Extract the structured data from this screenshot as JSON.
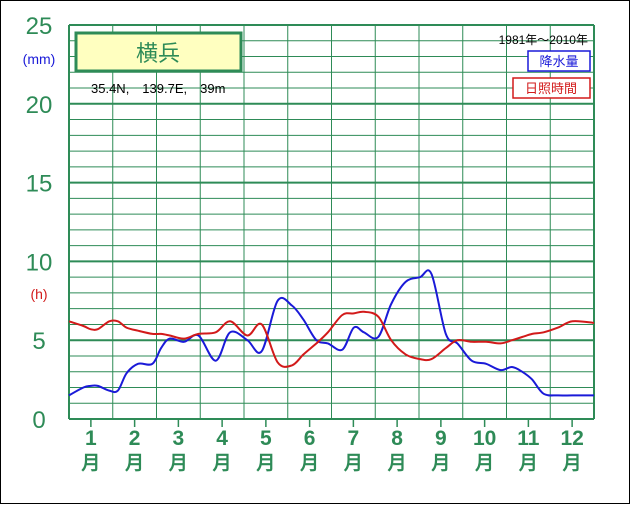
{
  "chart_data": {
    "type": "line",
    "title": "横兵",
    "period": "1981年〜2010年",
    "location": "35.4N,　139.7E,　39m",
    "y_unit_left": "(mm)",
    "y_unit_right": "(h)",
    "ylim": [
      0,
      25
    ],
    "yticks": [
      "0",
      "5",
      "10",
      "15",
      "20",
      "25"
    ],
    "month_numbers": [
      "1",
      "2",
      "3",
      "4",
      "5",
      "6",
      "7",
      "8",
      "9",
      "10",
      "11",
      "12"
    ],
    "month_char": "月",
    "grid": true,
    "legend_position": "top-right",
    "x_daily": [
      0,
      10,
      15,
      20,
      28,
      34,
      40,
      48,
      58,
      64,
      70,
      80,
      90,
      102,
      112,
      124,
      134,
      145,
      155,
      163,
      172,
      180,
      190,
      198,
      205,
      215,
      224,
      234,
      244,
      252,
      262,
      270,
      280,
      290,
      300,
      308,
      315,
      322,
      330,
      340,
      350,
      365
    ],
    "series": [
      {
        "name": "降水量",
        "color": "#1a1ad8",
        "values": [
          1.5,
          2.0,
          2.1,
          2.1,
          1.8,
          1.8,
          2.9,
          3.5,
          3.5,
          4.5,
          5.1,
          4.9,
          5.3,
          3.7,
          5.5,
          5.0,
          4.3,
          7.5,
          7.2,
          6.3,
          5.0,
          4.8,
          4.4,
          5.8,
          5.5,
          5.2,
          7.3,
          8.7,
          9.0,
          9.2,
          5.4,
          4.8,
          3.7,
          3.5,
          3.1,
          3.3,
          3.0,
          2.5,
          1.6,
          1.5,
          1.5,
          1.5
        ]
      },
      {
        "name": "日照時間",
        "color": "#d21a1a",
        "values": [
          6.2,
          5.9,
          5.7,
          5.7,
          6.2,
          6.2,
          5.8,
          5.6,
          5.4,
          5.4,
          5.3,
          5.1,
          5.4,
          5.5,
          6.2,
          5.3,
          6.0,
          3.6,
          3.4,
          4.1,
          4.8,
          5.5,
          6.6,
          6.7,
          6.8,
          6.5,
          5.0,
          4.1,
          3.8,
          3.8,
          4.5,
          5.0,
          4.9,
          4.9,
          4.8,
          5.0,
          5.2,
          5.4,
          5.5,
          5.8,
          6.2,
          6.1
        ]
      }
    ]
  }
}
